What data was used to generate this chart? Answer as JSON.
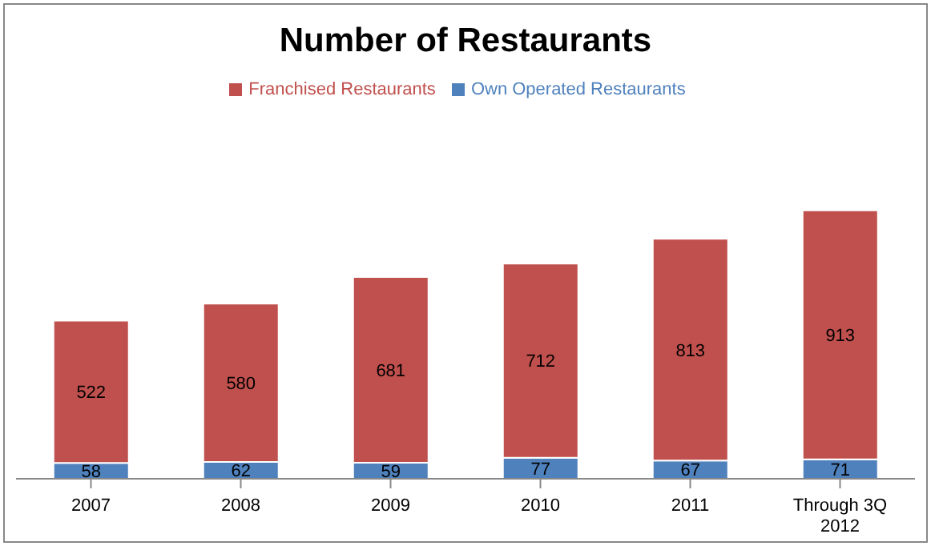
{
  "chart_data": {
    "type": "bar",
    "title": "Number of Restaurants",
    "stacked": true,
    "data_labels": true,
    "legend": "top",
    "grid": false,
    "categories": [
      "2007",
      "2008",
      "2009",
      "2010",
      "2011",
      "Through 3Q 2012"
    ],
    "series": [
      {
        "name": "Own Operated Restaurants",
        "color": "#4f81bd",
        "values": [
          58,
          62,
          59,
          77,
          67,
          71
        ]
      },
      {
        "name": "Franchised Restaurants",
        "color": "#c0504d",
        "values": [
          522,
          580,
          681,
          712,
          813,
          913
        ]
      }
    ]
  }
}
